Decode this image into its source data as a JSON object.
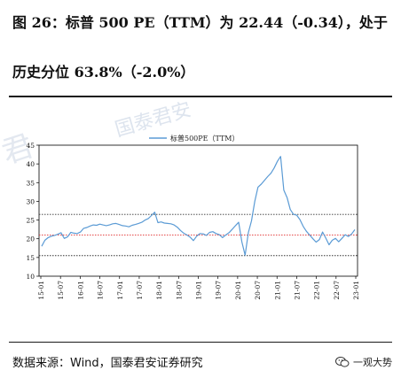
{
  "title": {
    "line1": "图 26：标普 500 PE（TTM）为 22.44（-0.34），处于",
    "line2": "历史分位 63.8%（-2.0%）"
  },
  "source": "数据来源：Wind，国泰君安证券研究",
  "brand": "一观大势",
  "watermark": "国泰君安",
  "chart_data": {
    "type": "line",
    "legend": "标普500PE（TTM）",
    "legend_position": "top-center",
    "ylim": [
      10,
      45
    ],
    "y_ticks": [
      10,
      15,
      20,
      25,
      30,
      35,
      40,
      45
    ],
    "x_ticks": [
      "15-01",
      "15-07",
      "16-01",
      "16-07",
      "17-01",
      "17-07",
      "18-01",
      "18-07",
      "19-01",
      "19-07",
      "20-01",
      "20-07",
      "21-01",
      "21-07",
      "22-01",
      "22-07",
      "23-01"
    ],
    "x_range": [
      0,
      97
    ],
    "grid": false,
    "series": [
      {
        "name": "标普500PE（TTM）",
        "color": "#5b9bd5",
        "x": [
          0,
          1,
          2,
          3,
          4,
          5,
          6,
          7,
          8,
          9,
          10,
          11,
          12,
          13,
          14,
          15,
          16,
          17,
          18,
          19,
          20,
          21,
          22,
          23,
          24,
          25,
          26,
          27,
          28,
          29,
          30,
          31,
          32,
          33,
          34,
          35,
          36,
          37,
          38,
          39,
          40,
          41,
          42,
          43,
          44,
          45,
          46,
          47,
          48,
          49,
          50,
          51,
          52,
          53,
          54,
          55,
          56,
          57,
          58,
          59,
          60,
          61,
          62,
          63,
          64,
          65,
          66,
          67,
          68,
          69,
          70,
          71,
          72,
          73,
          74,
          75,
          76,
          77,
          78,
          79,
          80,
          81,
          82,
          83,
          84,
          85,
          86,
          87,
          88,
          89,
          90,
          91,
          92,
          93,
          94,
          95,
          96,
          97
        ],
        "values": [
          18.0,
          19.6,
          20.3,
          20.7,
          20.9,
          21.2,
          21.6,
          20.1,
          20.5,
          21.7,
          21.5,
          21.4,
          21.8,
          22.8,
          23.0,
          23.4,
          23.7,
          23.6,
          23.9,
          23.7,
          23.5,
          23.7,
          24.0,
          24.1,
          23.8,
          23.5,
          23.4,
          23.2,
          23.6,
          23.8,
          24.1,
          24.4,
          25.0,
          25.4,
          26.2,
          27.1,
          24.3,
          24.5,
          24.2,
          24.1,
          24.0,
          23.7,
          23.1,
          22.2,
          21.5,
          21.0,
          20.4,
          19.5,
          20.7,
          21.4,
          21.3,
          20.9,
          21.7,
          21.9,
          21.4,
          21.1,
          20.3,
          21.0,
          21.6,
          22.5,
          23.5,
          24.4,
          19.2,
          15.6,
          21.6,
          24.8,
          30.0,
          33.8,
          34.6,
          35.6,
          36.6,
          37.5,
          38.9,
          40.7,
          42.0,
          33.0,
          31.0,
          27.8,
          26.5,
          26.3,
          25.1,
          23.3,
          22.0,
          21.0,
          20.0,
          19.1,
          19.8,
          21.8,
          20.2,
          18.4,
          19.6,
          20.1,
          19.2,
          20.1,
          21.1,
          20.6,
          21.3,
          22.44
        ]
      }
    ],
    "reference_lines": [
      {
        "value": 26.5,
        "color": "#333333",
        "style": "dotted"
      },
      {
        "value": 21.0,
        "color": "#e03030",
        "style": "dotted"
      },
      {
        "value": 15.5,
        "color": "#333333",
        "style": "dotted"
      }
    ]
  }
}
